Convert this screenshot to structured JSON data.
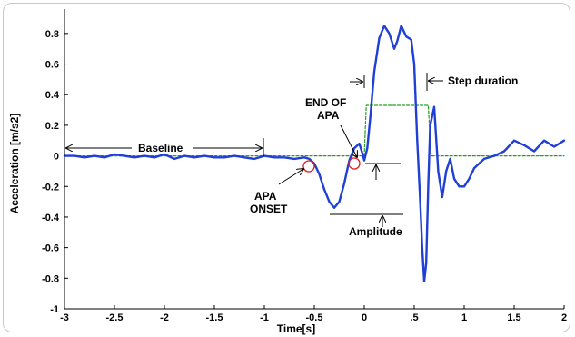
{
  "chart_data": {
    "type": "line",
    "xlabel": "Time[s]",
    "ylabel": "Acceleration [m/s2]",
    "xlim": [
      -3,
      2
    ],
    "ylim": [
      -1,
      0.9
    ],
    "xticks": [
      -3,
      -2.5,
      -2,
      -1.5,
      -1,
      -0.5,
      0,
      0.5,
      1,
      1.5,
      2
    ],
    "xtick_labels": [
      "-3",
      "-2.5",
      "-2",
      "-1.5",
      "-1",
      "-0.5",
      "0",
      ".5",
      "1",
      "1.5",
      "2"
    ],
    "yticks": [
      -1,
      -0.8,
      -0.6,
      -0.4,
      -0.2,
      0,
      0.2,
      0.4,
      0.6,
      0.8
    ],
    "ytick_labels": [
      "-1",
      "-0.8",
      "-0.6",
      "-0.4",
      "-0.2",
      "0",
      "0.2",
      "0.4",
      "0.6",
      "0.8"
    ],
    "grid": false,
    "series": [
      {
        "color": "#1f3fd6",
        "style": "solid",
        "x": [
          -3.0,
          -2.9,
          -2.8,
          -2.7,
          -2.6,
          -2.5,
          -2.4,
          -2.3,
          -2.2,
          -2.1,
          -2.0,
          -1.9,
          -1.8,
          -1.7,
          -1.6,
          -1.5,
          -1.4,
          -1.3,
          -1.2,
          -1.1,
          -1.0,
          -0.9,
          -0.8,
          -0.7,
          -0.6,
          -0.55,
          -0.5,
          -0.45,
          -0.4,
          -0.35,
          -0.3,
          -0.25,
          -0.2,
          -0.15,
          -0.1,
          -0.05,
          -0.02,
          0.0,
          0.03,
          0.06,
          0.1,
          0.15,
          0.2,
          0.25,
          0.3,
          0.33,
          0.37,
          0.42,
          0.47,
          0.5,
          0.53,
          0.56,
          0.58,
          0.6,
          0.62,
          0.64,
          0.66,
          0.7,
          0.74,
          0.78,
          0.82,
          0.86,
          0.9,
          0.95,
          1.0,
          1.05,
          1.1,
          1.2,
          1.3,
          1.4,
          1.5,
          1.6,
          1.7,
          1.8,
          1.9,
          2.0
        ],
        "y": [
          0.0,
          0.0,
          -0.01,
          0.0,
          -0.01,
          0.01,
          0.0,
          -0.01,
          0.0,
          -0.01,
          0.01,
          -0.02,
          0.0,
          -0.01,
          0.0,
          -0.01,
          -0.01,
          0.0,
          -0.01,
          -0.02,
          0.0,
          -0.01,
          -0.01,
          -0.02,
          -0.01,
          -0.02,
          -0.05,
          -0.12,
          -0.22,
          -0.3,
          -0.34,
          -0.3,
          -0.18,
          -0.03,
          0.05,
          0.08,
          0.02,
          -0.03,
          0.05,
          0.25,
          0.55,
          0.77,
          0.85,
          0.8,
          0.7,
          0.75,
          0.85,
          0.78,
          0.76,
          0.6,
          0.1,
          -0.3,
          -0.6,
          -0.82,
          -0.7,
          -0.2,
          0.2,
          0.32,
          -0.1,
          -0.27,
          -0.1,
          -0.02,
          -0.15,
          -0.2,
          -0.2,
          -0.15,
          -0.08,
          -0.02,
          0.0,
          0.03,
          0.1,
          0.07,
          0.03,
          0.1,
          0.06,
          0.1
        ]
      },
      {
        "color": "#22a022",
        "style": "dashed",
        "x": [
          -3.0,
          0.0,
          0.02,
          0.64,
          0.67,
          2.0
        ],
        "y": [
          0.0,
          0.0,
          0.33,
          0.33,
          0.0,
          0.0
        ]
      }
    ],
    "annotations": {
      "baseline": "Baseline",
      "apa_onset_1": "APA",
      "apa_onset_2": "ONSET",
      "end_of_apa_1": "END OF",
      "end_of_apa_2": "APA",
      "amplitude": "Amplitude",
      "step_duration": "Step duration"
    }
  }
}
